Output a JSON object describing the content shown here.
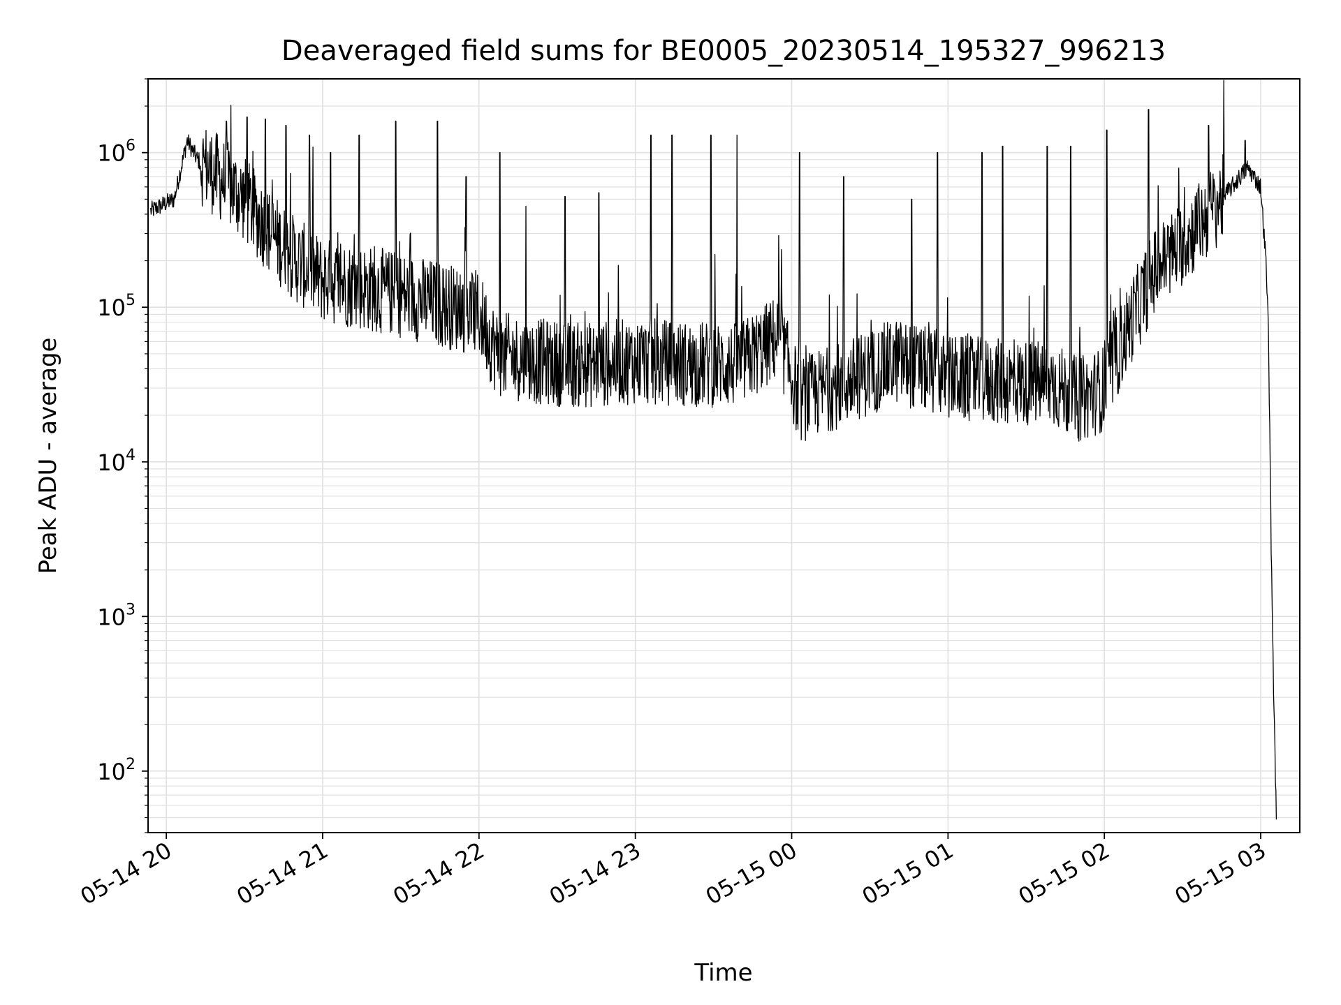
{
  "chart_data": {
    "type": "line",
    "title": "Deaveraged field sums for BE0005_20230514_195327_996213",
    "xlabel": "Time",
    "ylabel": "Peak ADU - average",
    "y_scale": "log",
    "grid": true,
    "line_color": "#000000",
    "grid_color": "#e0e0e0",
    "xlim": [
      "05-14 19:53",
      "05-15 03:15"
    ],
    "ylim": [
      40,
      3000000
    ],
    "x_ticks": [
      "05-14 20",
      "05-14 21",
      "05-14 22",
      "05-14 23",
      "05-15 00",
      "05-15 01",
      "05-15 02",
      "05-15 03"
    ],
    "y_ticks": [
      {
        "base": "10",
        "exp": "2",
        "value": 100
      },
      {
        "base": "10",
        "exp": "3",
        "value": 1000
      },
      {
        "base": "10",
        "exp": "4",
        "value": 10000
      },
      {
        "base": "10",
        "exp": "5",
        "value": 100000
      },
      {
        "base": "10",
        "exp": "6",
        "value": 1000000
      }
    ],
    "series": [
      {
        "x": [
          "05-14 19:54",
          "05-14 20:03",
          "05-14 20:08",
          "05-14 20:12",
          "05-14 20:20",
          "05-14 20:30",
          "05-14 20:40",
          "05-14 20:50",
          "05-14 21:00",
          "05-14 21:10",
          "05-14 21:20",
          "05-14 21:30",
          "05-14 21:40",
          "05-14 21:50",
          "05-14 22:00",
          "05-14 22:07",
          "05-14 22:20",
          "05-14 22:40",
          "05-14 23:00",
          "05-14 23:20",
          "05-14 23:40",
          "05-14 23:55",
          "05-15 00:03",
          "05-15 00:10",
          "05-15 00:20",
          "05-15 00:30",
          "05-15 00:40",
          "05-15 00:50",
          "05-15 01:00",
          "05-15 01:20",
          "05-15 01:40",
          "05-15 01:50",
          "05-15 02:00",
          "05-15 02:10",
          "05-15 02:20",
          "05-15 02:30",
          "05-15 02:45",
          "05-15 02:55",
          "05-15 03:00",
          "05-15 03:02",
          "05-15 03:03",
          "05-15 03:04",
          "05-15 03:05",
          "05-15 03:06"
        ],
        "y": [
          420000,
          500000,
          1200000,
          900000,
          700000,
          500000,
          300000,
          200000,
          150000,
          140000,
          130000,
          120000,
          110000,
          100000,
          90000,
          50000,
          45000,
          42000,
          45000,
          43000,
          42000,
          65000,
          25000,
          28000,
          32000,
          38000,
          45000,
          40000,
          35000,
          33000,
          32000,
          25000,
          30000,
          80000,
          180000,
          260000,
          500000,
          800000,
          600000,
          200000,
          70000,
          3000,
          300,
          50
        ],
        "spikes": [
          {
            "x": "05-14 20:23",
            "y": 1600000
          },
          {
            "x": "05-14 20:31",
            "y": 1700000
          },
          {
            "x": "05-14 20:38",
            "y": 1650000
          },
          {
            "x": "05-14 20:46",
            "y": 1500000
          },
          {
            "x": "05-14 20:55",
            "y": 1300000
          },
          {
            "x": "05-14 21:03",
            "y": 1000000
          },
          {
            "x": "05-14 21:14",
            "y": 1300000
          },
          {
            "x": "05-14 21:28",
            "y": 1600000
          },
          {
            "x": "05-14 21:44",
            "y": 1600000
          },
          {
            "x": "05-14 21:55",
            "y": 700000
          },
          {
            "x": "05-14 22:08",
            "y": 1000000
          },
          {
            "x": "05-14 22:18",
            "y": 450000
          },
          {
            "x": "05-14 22:33",
            "y": 520000
          },
          {
            "x": "05-14 22:46",
            "y": 550000
          },
          {
            "x": "05-14 23:06",
            "y": 1300000
          },
          {
            "x": "05-14 23:14",
            "y": 1300000
          },
          {
            "x": "05-14 23:29",
            "y": 1300000
          },
          {
            "x": "05-14 23:39",
            "y": 1300000
          },
          {
            "x": "05-15 00:03",
            "y": 1000000
          },
          {
            "x": "05-15 00:20",
            "y": 700000
          },
          {
            "x": "05-15 00:46",
            "y": 500000
          },
          {
            "x": "05-15 00:56",
            "y": 1000000
          },
          {
            "x": "05-15 01:13",
            "y": 1000000
          },
          {
            "x": "05-15 01:21",
            "y": 1100000
          },
          {
            "x": "05-15 01:38",
            "y": 1100000
          },
          {
            "x": "05-15 01:47",
            "y": 1100000
          },
          {
            "x": "05-15 02:01",
            "y": 1400000
          },
          {
            "x": "05-15 02:17",
            "y": 1900000
          },
          {
            "x": "05-15 02:40",
            "y": 1500000
          },
          {
            "x": "05-15 02:54",
            "y": 1200000
          }
        ]
      }
    ]
  }
}
